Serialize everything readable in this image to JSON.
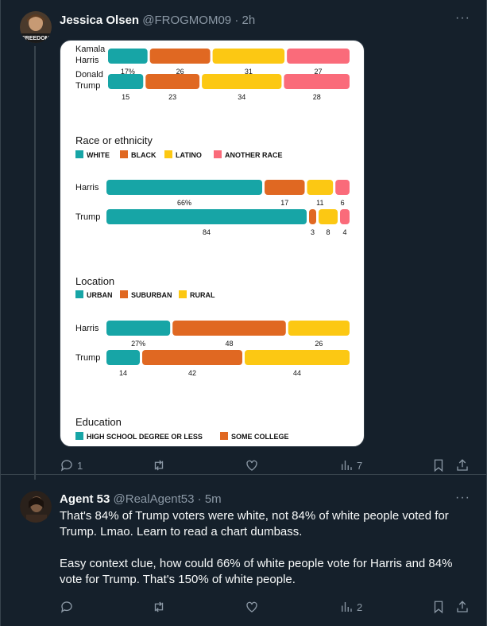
{
  "tweet1": {
    "name": "Jessica Olsen",
    "handle": "@FROGMOM09",
    "time": "2h",
    "avatar_text": "FREEDOM",
    "replies": "1",
    "retweets": "",
    "likes": "",
    "views": "7"
  },
  "tweet2": {
    "name": "Agent 53",
    "handle": "@RealAgent53",
    "time": "5m",
    "para1": "That's 84% of Trump voters were white, not 84% of white people voted for Trump. Lmao. Learn to read a chart dumbass.",
    "para2": "Easy context clue, how could 66% of white people vote for Harris and 84% vote for Trump. That's 150% of white people.",
    "replies": "",
    "retweets": "",
    "likes": "",
    "views": "2"
  },
  "icons": [
    "reply-icon",
    "retweet-icon",
    "like-icon",
    "views-icon",
    "bookmark-icon",
    "share-icon",
    "more-icon"
  ],
  "colors": {
    "teal": "#17a5a6",
    "orange": "#e06822",
    "yellow": "#fcc813",
    "pink": "#fa6b7a"
  },
  "chart_data": {
    "type": "bar",
    "stacked": true,
    "orientation": "horizontal",
    "sections": [
      {
        "title": "",
        "legend": [],
        "rows": [
          {
            "label": [
              "Kamala",
              "Harris"
            ],
            "values": [
              17,
              26,
              31,
              27
            ],
            "labels": [
              "17%",
              "26",
              "31",
              "27"
            ],
            "colors": [
              "teal",
              "orange",
              "yellow",
              "pink"
            ]
          },
          {
            "label": [
              "Donald",
              "Trump"
            ],
            "values": [
              15,
              23,
              34,
              28
            ],
            "labels": [
              "15",
              "23",
              "34",
              "28"
            ],
            "colors": [
              "teal",
              "orange",
              "yellow",
              "pink"
            ]
          }
        ]
      },
      {
        "title": "Race or ethnicity",
        "legend": [
          {
            "name": "WHITE",
            "color": "teal"
          },
          {
            "name": "BLACK",
            "color": "orange"
          },
          {
            "name": "LATINO",
            "color": "yellow"
          },
          {
            "name": "ANOTHER RACE",
            "color": "pink"
          }
        ],
        "rows": [
          {
            "label": [
              "Harris"
            ],
            "values": [
              66,
              17,
              11,
              6
            ],
            "labels": [
              "66%",
              "17",
              "11",
              "6"
            ],
            "colors": [
              "teal",
              "orange",
              "yellow",
              "pink"
            ]
          },
          {
            "label": [
              "Trump"
            ],
            "values": [
              84,
              3,
              8,
              4
            ],
            "labels": [
              "84",
              "3",
              "8",
              "4"
            ],
            "colors": [
              "teal",
              "orange",
              "yellow",
              "pink"
            ]
          }
        ]
      },
      {
        "title": "Location",
        "legend": [
          {
            "name": "URBAN",
            "color": "teal"
          },
          {
            "name": "SUBURBAN",
            "color": "orange"
          },
          {
            "name": "RURAL",
            "color": "yellow"
          }
        ],
        "rows": [
          {
            "label": [
              "Harris"
            ],
            "values": [
              27,
              48,
              26
            ],
            "labels": [
              "27%",
              "48",
              "26"
            ],
            "colors": [
              "teal",
              "orange",
              "yellow"
            ]
          },
          {
            "label": [
              "Trump"
            ],
            "values": [
              14,
              42,
              44
            ],
            "labels": [
              "14",
              "42",
              "44"
            ],
            "colors": [
              "teal",
              "orange",
              "yellow"
            ]
          }
        ]
      },
      {
        "title": "Education",
        "legend": [
          {
            "name": "HIGH SCHOOL DEGREE OR LESS",
            "color": "teal"
          },
          {
            "name": "SOME COLLEGE",
            "color": "orange"
          }
        ],
        "rows": []
      }
    ]
  }
}
